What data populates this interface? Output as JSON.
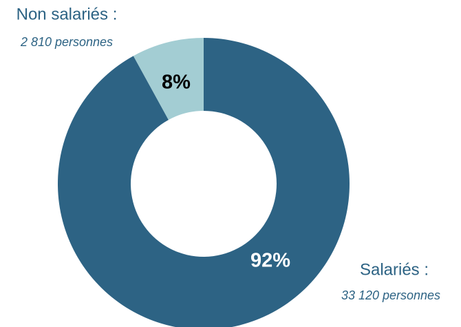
{
  "chart_data": {
    "type": "donut",
    "categories": [
      "Salariés :",
      "Non salariés :"
    ],
    "annotations": [
      "33 120 personnes",
      "2 810 personnes"
    ],
    "values": [
      92,
      8
    ],
    "value_labels": [
      "92%",
      "8%"
    ],
    "colors": [
      "#2d6384",
      "#a3cdd3"
    ],
    "label_colors": [
      "#ffffff",
      "#000000"
    ]
  }
}
